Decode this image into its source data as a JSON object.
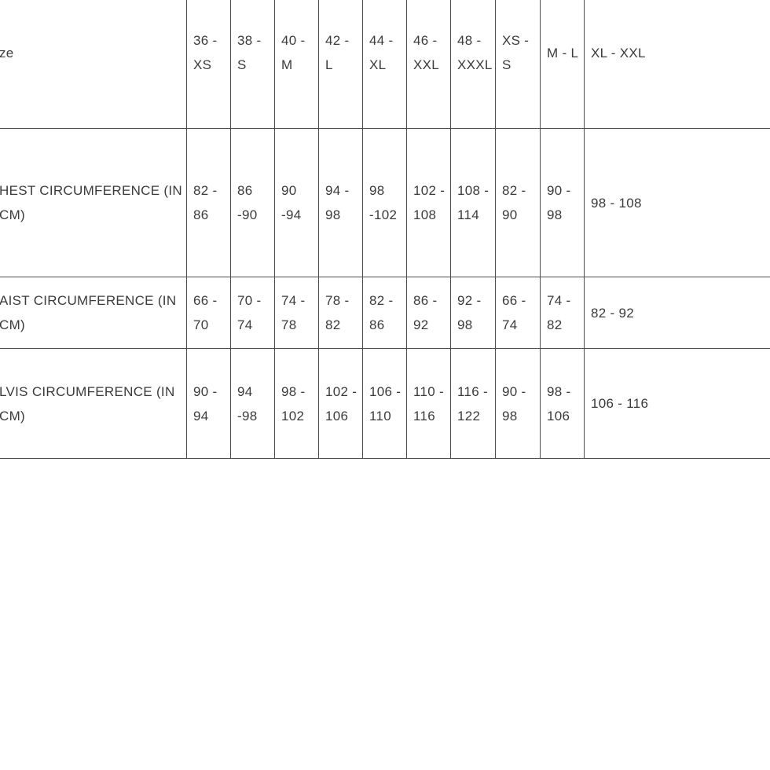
{
  "page": {
    "background": "#ffffff"
  },
  "table": {
    "corner_label": "ze",
    "size_headers": [
      "36 -\nXS",
      "38 -\nS",
      "40 -\nM",
      "42 -\nL",
      "44 -\nXL",
      "46 -\nXXL",
      "48 -\nXXXL",
      "XS -\nS",
      "M - L",
      "XL - XXL"
    ],
    "rows": [
      {
        "label": "HEST CIRCUMFERENCE (IN CM)",
        "values": [
          "82 -\n86",
          "86\n-90",
          "90\n-94",
          "94 -\n98",
          "98\n-102",
          "102 -\n108",
          "108 -\n114",
          "82 -\n90",
          "90 -\n98",
          "98 - 108"
        ]
      },
      {
        "label": "AIST CIRCUMFERENCE (IN CM)",
        "values": [
          "66 -\n70",
          "70 -\n74",
          "74 -\n78",
          "78 -\n82",
          "82 -\n86",
          "86 -\n92",
          "92 -\n98",
          "66 -\n74",
          "74 -\n82",
          "82 - 92"
        ]
      },
      {
        "label": "LVIS CIRCUMFERENCE (IN CM)",
        "values": [
          "90 -\n94",
          "94\n-98",
          "98 -\n102",
          "102 -\n106",
          "106 -\n110",
          "110 -\n116",
          "116 -\n122",
          "90 -\n98",
          "98 -\n106",
          "106 - 116"
        ]
      }
    ],
    "colors": {
      "text": "#3b3b3b",
      "border": "#4f4f4f",
      "background": "#ffffff"
    }
  }
}
